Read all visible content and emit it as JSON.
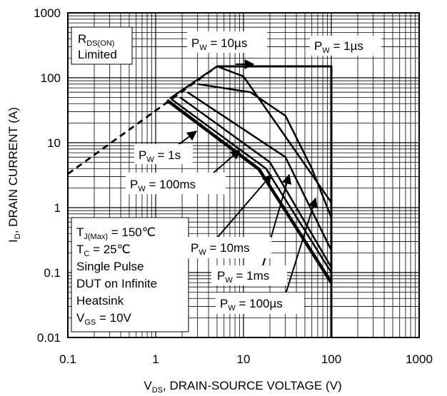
{
  "chart_data": {
    "type": "line",
    "xscale": "log",
    "yscale": "log",
    "xlim": [
      0.1,
      1000
    ],
    "ylim": [
      0.01,
      1000
    ],
    "grid": true,
    "xlabel": {
      "main": "V",
      "sub": "DS",
      "rest": ", DRAIN-SOURCE VOLTAGE (V)"
    },
    "ylabel": {
      "main": "I",
      "sub": "D",
      "rest": ", DRAIN CURRENT (A)"
    },
    "xticks": [
      {
        "value": 0.1,
        "label": "0.1"
      },
      {
        "value": 1,
        "label": "1"
      },
      {
        "value": 10,
        "label": "10"
      },
      {
        "value": 100,
        "label": "100"
      },
      {
        "value": 1000,
        "label": "1000"
      }
    ],
    "yticks": [
      {
        "value": 0.01,
        "label": "0.01"
      },
      {
        "value": 0.1,
        "label": "0.1"
      },
      {
        "value": 1,
        "label": "1"
      },
      {
        "value": 10,
        "label": "10"
      },
      {
        "value": 100,
        "label": "100"
      },
      {
        "value": 1000,
        "label": "1000"
      }
    ],
    "series": [
      {
        "id": "rdson",
        "style": "dashed",
        "points": [
          [
            0.1,
            3.3
          ],
          [
            5.0,
            150
          ]
        ]
      },
      {
        "id": "pw10us",
        "style": "solid",
        "points": [
          [
            1.45,
            48
          ],
          [
            5.0,
            150
          ],
          [
            10,
            105
          ],
          [
            100,
            1.2
          ]
        ]
      },
      {
        "id": "pw1us",
        "style": "solid",
        "points": [
          [
            5.0,
            150
          ],
          [
            100,
            150
          ],
          [
            100,
            0.01
          ]
        ]
      },
      {
        "id": "pw100us",
        "style": "solid",
        "points": [
          [
            3.0,
            80
          ],
          [
            12,
            60
          ],
          [
            30,
            26
          ],
          [
            60,
            4
          ],
          [
            100,
            0.7
          ]
        ]
      },
      {
        "id": "pw1ms",
        "style": "solid",
        "points": [
          [
            2.3,
            60
          ],
          [
            30,
            6
          ],
          [
            100,
            0.22
          ]
        ]
      },
      {
        "id": "pw10ms",
        "style": "solid",
        "points": [
          [
            1.9,
            50
          ],
          [
            20,
            5
          ],
          [
            100,
            0.12
          ]
        ]
      },
      {
        "id": "pw100ms",
        "style": "solid",
        "points": [
          [
            1.5,
            47
          ],
          [
            18,
            4
          ],
          [
            100,
            0.1
          ]
        ]
      },
      {
        "id": "pw1s",
        "style": "solid",
        "points": [
          [
            1.35,
            45
          ],
          [
            15,
            3.9
          ],
          [
            100,
            0.07
          ]
        ]
      }
    ],
    "annotations": {
      "rdson": {
        "line1": "R",
        "line1_sub": "DS(ON)",
        "line2": "Limited"
      },
      "pw10us": {
        "main": "P",
        "sub": "W",
        "rest": " = 10µs"
      },
      "pw1us": {
        "main": "P",
        "sub": "W",
        "rest": " = 1µs"
      },
      "pw1s": {
        "main": "P",
        "sub": "W",
        "rest": " = 1s"
      },
      "pw100ms": {
        "main": "P",
        "sub": "W",
        "rest": " = 100ms"
      },
      "pw10ms": {
        "main": "P",
        "sub": "W",
        "rest": " = 10ms"
      },
      "pw1ms": {
        "main": "P",
        "sub": "W",
        "rest": " = 1ms"
      },
      "pw100us": {
        "main": "P",
        "sub": "W",
        "rest": " = 100µs"
      }
    },
    "conditions": {
      "tj": {
        "main": "T",
        "sub": "J(Max)",
        "rest": " = 150℃"
      },
      "tc": {
        "main": "T",
        "sub": "C",
        "rest": " = 25℃"
      },
      "pulse": "Single Pulse",
      "dut": "DUT on Infinite",
      "heatsink": "Heatsink",
      "vgs": {
        "main": "V",
        "sub": "GS",
        "rest": " = 10V"
      }
    }
  }
}
